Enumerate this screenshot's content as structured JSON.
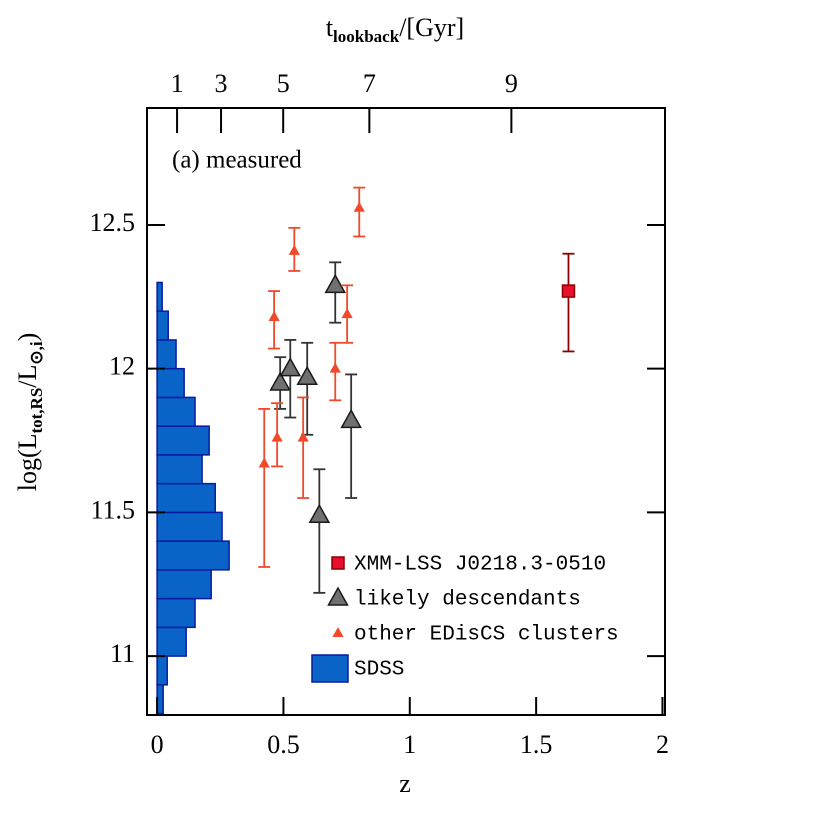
{
  "chart_data": {
    "type": "scatter",
    "annotation": "(a) measured",
    "xlabel": "z",
    "ylabel": [
      "log(L",
      "tot,RS",
      "/L",
      "⊙,i",
      ")"
    ],
    "x2label": [
      "t",
      "lookback",
      "/[Gyr]"
    ],
    "xlim": [
      -0.04,
      2.01
    ],
    "ylim": [
      10.795,
      12.907
    ],
    "xticks": [
      0,
      0.5,
      1,
      1.5,
      2
    ],
    "yticks": [
      11,
      11.5,
      12,
      12.5
    ],
    "x2ticks": [
      {
        "value": 0.079,
        "label": "1"
      },
      {
        "value": 0.253,
        "label": "3"
      },
      {
        "value": 0.499,
        "label": "5"
      },
      {
        "value": 0.84,
        "label": "7"
      },
      {
        "value": 1.402,
        "label": "9"
      }
    ],
    "legend": "lower right",
    "series": [
      {
        "name": "XMM-LSS J0218.3-0510",
        "marker": "square",
        "color": "#e8102e",
        "edge": "#8b0000",
        "text_color": "#9b0a0a",
        "x": [
          1.628
        ],
        "values": [
          12.27
        ],
        "errors_low": [
          0.21
        ],
        "errors_high": [
          0.13
        ]
      },
      {
        "name": "likely descendants",
        "marker": "triangle",
        "color": "#707070",
        "edge": "#1a1a1a",
        "text_color": "#404040",
        "x": [
          0.487,
          0.527,
          0.594,
          0.642,
          0.705,
          0.768
        ],
        "values": [
          11.95,
          12.0,
          11.97,
          11.49,
          12.29,
          11.82
        ],
        "errors_low": [
          0.09,
          0.17,
          0.2,
          0.27,
          0.13,
          0.27
        ],
        "errors_high": [
          0.09,
          0.1,
          0.12,
          0.16,
          0.08,
          0.16
        ]
      },
      {
        "name": "other EDisCS clusters",
        "marker": "small-triangle",
        "color": "#f04a2a",
        "edge": "#f04a2a",
        "text_color": "#404040",
        "x": [
          0.424,
          0.463,
          0.475,
          0.543,
          0.578,
          0.705,
          0.752,
          0.8
        ],
        "values": [
          11.67,
          12.18,
          11.76,
          12.41,
          11.76,
          12.0,
          12.19,
          12.56
        ],
        "errors_low": [
          0.36,
          0.11,
          0.1,
          0.07,
          0.21,
          0.11,
          0.1,
          0.1
        ],
        "errors_high": [
          0.19,
          0.09,
          0.12,
          0.08,
          0.14,
          0.09,
          0.1,
          0.07
        ]
      },
      {
        "name": "SDSS",
        "marker": "histogram",
        "color": "#0a64c8",
        "edge": "#0a1aa0",
        "text_color": "#0a1aa0",
        "bins": [
          10.8,
          10.9,
          11.0,
          11.1,
          11.2,
          11.3,
          11.4,
          11.5,
          11.6,
          11.7,
          11.8,
          11.9,
          12.0,
          12.1,
          12.2,
          12.3
        ],
        "values": [
          0.024,
          0.04,
          0.115,
          0.15,
          0.214,
          0.285,
          0.257,
          0.23,
          0.178,
          0.206,
          0.15,
          0.107,
          0.075,
          0.044,
          0.02
        ]
      }
    ]
  }
}
